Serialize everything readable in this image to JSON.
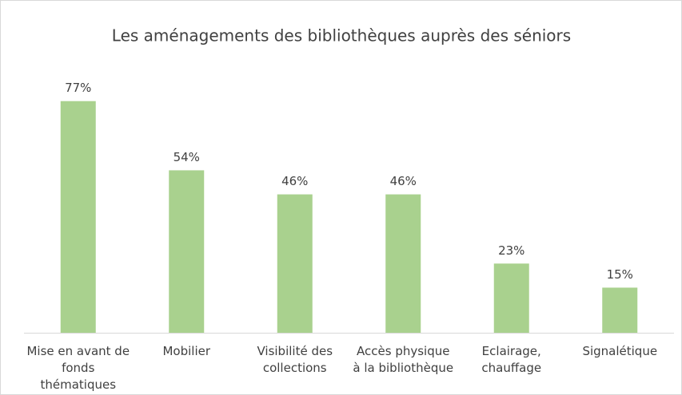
{
  "chart_data": {
    "type": "bar",
    "title": "Les aménagements des bibliothèques auprès des séniors",
    "categories": [
      "Mise en avant de fonds thématiques",
      "Mobilier",
      "Visibilité des collections",
      "Accès physique à la bibliothèque",
      "Eclairage, chauffage",
      "Signalétique"
    ],
    "values": [
      77,
      54,
      46,
      46,
      23,
      15
    ],
    "value_labels": [
      "77%",
      "54%",
      "46%",
      "46%",
      "23%",
      "15%"
    ],
    "color": "#a9d18e"
  }
}
